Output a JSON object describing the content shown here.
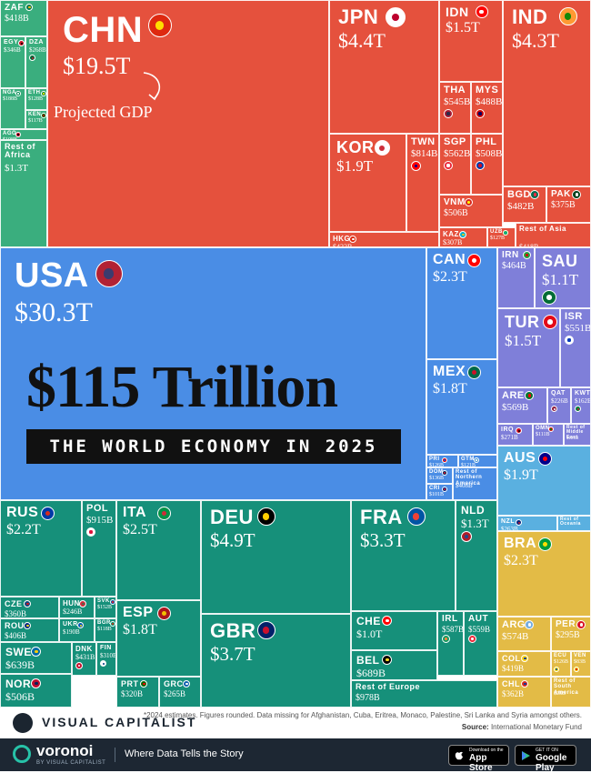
{
  "chart_data": {
    "type": "treemap",
    "headline": "$115 Trillion",
    "subtitle": "THE WORLD ECONOMY IN 2025",
    "annotation": "Projected GDP",
    "cells": [
      {
        "code": "ZAF",
        "value": "$418B",
        "region": "Africa",
        "flag": [
          "#007a4d",
          "#ffb612"
        ]
      },
      {
        "code": "EGY",
        "value": "$346B",
        "region": "Africa",
        "flag": [
          "#ce1126",
          "#000000"
        ]
      },
      {
        "code": "DZA",
        "value": "$268B",
        "region": "Africa",
        "flag": [
          "#006233",
          "#d21034"
        ]
      },
      {
        "code": "NGA",
        "value": "$188B",
        "region": "Africa",
        "flag": [
          "#008751",
          "#ffffff"
        ]
      },
      {
        "code": "ETH",
        "value": "$128B",
        "region": "Africa",
        "flag": [
          "#078930",
          "#fcdd09"
        ]
      },
      {
        "code": "KEN",
        "value": "$117B",
        "region": "Africa",
        "flag": [
          "#006600",
          "#bb0000"
        ]
      },
      {
        "code": "AGO",
        "value": "$108B",
        "region": "Africa",
        "flag": [
          "#cc092f",
          "#000000"
        ]
      },
      {
        "code": "Rest of Africa",
        "value": "$1.3T",
        "region": "Africa",
        "flag": []
      },
      {
        "code": "CHN",
        "value": "$19.5T",
        "region": "Asia",
        "flag": [
          "#de2910",
          "#ffde00"
        ]
      },
      {
        "code": "JPN",
        "value": "$4.4T",
        "region": "Asia",
        "flag": [
          "#ffffff",
          "#bc002d"
        ]
      },
      {
        "code": "IDN",
        "value": "$1.5T",
        "region": "Asia",
        "flag": [
          "#ff0000",
          "#ffffff"
        ]
      },
      {
        "code": "IND",
        "value": "$4.3T",
        "region": "Asia",
        "flag": [
          "#ff9933",
          "#138808"
        ]
      },
      {
        "code": "THA",
        "value": "$545B",
        "region": "Asia",
        "flag": [
          "#a51931",
          "#2d2a4a"
        ]
      },
      {
        "code": "MYS",
        "value": "$488B",
        "region": "Asia",
        "flag": [
          "#cc0001",
          "#010066"
        ]
      },
      {
        "code": "KOR",
        "value": "$1.9T",
        "region": "Asia",
        "flag": [
          "#ffffff",
          "#cd2e3a"
        ]
      },
      {
        "code": "TWN",
        "value": "$814B",
        "region": "Asia",
        "flag": [
          "#fe0000",
          "#000095"
        ]
      },
      {
        "code": "SGP",
        "value": "$562B",
        "region": "Asia",
        "flag": [
          "#ed2939",
          "#ffffff"
        ]
      },
      {
        "code": "PHL",
        "value": "$508B",
        "region": "Asia",
        "flag": [
          "#0038a8",
          "#ce1126"
        ]
      },
      {
        "code": "VNM",
        "value": "$506B",
        "region": "Asia",
        "flag": [
          "#da251d",
          "#ffff00"
        ]
      },
      {
        "code": "BGD",
        "value": "$482B",
        "region": "Asia",
        "flag": [
          "#006a4e",
          "#f42a41"
        ]
      },
      {
        "code": "PAK",
        "value": "$375B",
        "region": "Asia",
        "flag": [
          "#01411c",
          "#ffffff"
        ]
      },
      {
        "code": "HKG",
        "value": "$422B",
        "region": "Asia",
        "flag": [
          "#de2910",
          "#ffffff"
        ]
      },
      {
        "code": "KAZ",
        "value": "$307B",
        "region": "Asia",
        "flag": [
          "#00afca",
          "#fec50c"
        ]
      },
      {
        "code": "UZB",
        "value": "$127B",
        "region": "Asia",
        "flag": [
          "#1eb53a",
          "#0099b5"
        ]
      },
      {
        "code": "Rest of Asia",
        "value": "$418B",
        "region": "Asia",
        "flag": []
      },
      {
        "code": "USA",
        "value": "$30.3T",
        "region": "North America",
        "flag": [
          "#b22234",
          "#3c3b6e"
        ]
      },
      {
        "code": "CAN",
        "value": "$2.3T",
        "region": "North America",
        "flag": [
          "#ff0000",
          "#ffffff"
        ]
      },
      {
        "code": "MEX",
        "value": "$1.8T",
        "region": "North America",
        "flag": [
          "#006847",
          "#ce1126"
        ]
      },
      {
        "code": "PRI",
        "value": "$126B",
        "region": "North America",
        "flag": [
          "#ed0000",
          "#0050f0"
        ]
      },
      {
        "code": "GTM",
        "value": "$121B",
        "region": "North America",
        "flag": [
          "#4997d0",
          "#ffffff"
        ]
      },
      {
        "code": "DOM",
        "value": "$136B",
        "region": "North America",
        "flag": [
          "#002d62",
          "#ce1126"
        ]
      },
      {
        "code": "CRI",
        "value": "$101B",
        "region": "North America",
        "flag": [
          "#002b7f",
          "#ce1126"
        ]
      },
      {
        "code": "Rest of Northern America",
        "value": "$408B",
        "region": "North America",
        "flag": []
      },
      {
        "code": "IRN",
        "value": "$464B",
        "region": "Middle East",
        "flag": [
          "#239f40",
          "#da0000"
        ]
      },
      {
        "code": "SAU",
        "value": "$1.1T",
        "region": "Middle East",
        "flag": [
          "#006c35",
          "#ffffff"
        ]
      },
      {
        "code": "TUR",
        "value": "$1.5T",
        "region": "Middle East",
        "flag": [
          "#e30a17",
          "#ffffff"
        ]
      },
      {
        "code": "ISR",
        "value": "$551B",
        "region": "Middle East",
        "flag": [
          "#ffffff",
          "#0038b8"
        ]
      },
      {
        "code": "ARE",
        "value": "$569B",
        "region": "Middle East",
        "flag": [
          "#00732f",
          "#ff0000"
        ]
      },
      {
        "code": "QAT",
        "value": "$226B",
        "region": "Middle East",
        "flag": [
          "#8d1b3d",
          "#ffffff"
        ]
      },
      {
        "code": "KWT",
        "value": "$162B",
        "region": "Middle East",
        "flag": [
          "#007a3d",
          "#ce1126"
        ]
      },
      {
        "code": "IRQ",
        "value": "$271B",
        "region": "Middle East",
        "flag": [
          "#ce1126",
          "#000000"
        ]
      },
      {
        "code": "OMN",
        "value": "$111B",
        "region": "Middle East",
        "flag": [
          "#db161b",
          "#008000"
        ]
      },
      {
        "code": "Rest of Middle East",
        "value": "$121B",
        "region": "Middle East",
        "flag": []
      },
      {
        "code": "AUS",
        "value": "$1.9T",
        "region": "Oceania",
        "flag": [
          "#00008b",
          "#ff0000"
        ]
      },
      {
        "code": "NZL",
        "value": "$263B",
        "region": "Oceania",
        "flag": [
          "#00247d",
          "#cc142b"
        ]
      },
      {
        "code": "Rest of Oceania",
        "value": "",
        "region": "Oceania",
        "flag": []
      },
      {
        "code": "RUS",
        "value": "$2.2T",
        "region": "Europe",
        "flag": [
          "#0039a6",
          "#d52b1e"
        ]
      },
      {
        "code": "POL",
        "value": "$915B",
        "region": "Europe",
        "flag": [
          "#ffffff",
          "#dc143c"
        ]
      },
      {
        "code": "ITA",
        "value": "$2.5T",
        "region": "Europe",
        "flag": [
          "#009246",
          "#ce2b37"
        ]
      },
      {
        "code": "DEU",
        "value": "$4.9T",
        "region": "Europe",
        "flag": [
          "#000000",
          "#ffce00"
        ]
      },
      {
        "code": "FRA",
        "value": "$3.3T",
        "region": "Europe",
        "flag": [
          "#0055a4",
          "#ef4135"
        ]
      },
      {
        "code": "NLD",
        "value": "$1.3T",
        "region": "Europe",
        "flag": [
          "#ae1c28",
          "#21468b"
        ]
      },
      {
        "code": "CZE",
        "value": "$360B",
        "region": "Europe",
        "flag": [
          "#11457e",
          "#d7141a"
        ]
      },
      {
        "code": "HUN",
        "value": "$246B",
        "region": "Europe",
        "flag": [
          "#ce2939",
          "#477050"
        ]
      },
      {
        "code": "SVK",
        "value": "$152B",
        "region": "Europe",
        "flag": [
          "#0b4ea2",
          "#ee1c25"
        ]
      },
      {
        "code": "ROU",
        "value": "$406B",
        "region": "Europe",
        "flag": [
          "#002b7f",
          "#fcd116"
        ]
      },
      {
        "code": "UKR",
        "value": "$190B",
        "region": "Europe",
        "flag": [
          "#0057b7",
          "#ffd700"
        ]
      },
      {
        "code": "BGR",
        "value": "$118B",
        "region": "Europe",
        "flag": [
          "#00966e",
          "#d62612"
        ]
      },
      {
        "code": "ESP",
        "value": "$1.8T",
        "region": "Europe",
        "flag": [
          "#aa151b",
          "#f1bf00"
        ]
      },
      {
        "code": "GBR",
        "value": "$3.7T",
        "region": "Europe",
        "flag": [
          "#012169",
          "#c8102e"
        ]
      },
      {
        "code": "CHE",
        "value": "$1.0T",
        "region": "Europe",
        "flag": [
          "#ff0000",
          "#ffffff"
        ]
      },
      {
        "code": "IRL",
        "value": "$587B",
        "region": "Europe",
        "flag": [
          "#169b62",
          "#ff883e"
        ]
      },
      {
        "code": "AUT",
        "value": "$559B",
        "region": "Europe",
        "flag": [
          "#ed2939",
          "#ffffff"
        ]
      },
      {
        "code": "BEL",
        "value": "$689B",
        "region": "Europe",
        "flag": [
          "#000000",
          "#fdda24"
        ]
      },
      {
        "code": "SWE",
        "value": "$639B",
        "region": "Europe",
        "flag": [
          "#006aa7",
          "#fecc00"
        ]
      },
      {
        "code": "DNK",
        "value": "$431B",
        "region": "Europe",
        "flag": [
          "#c8102e",
          "#ffffff"
        ]
      },
      {
        "code": "FIN",
        "value": "$310B",
        "region": "Europe",
        "flag": [
          "#ffffff",
          "#003580"
        ]
      },
      {
        "code": "NOR",
        "value": "$506B",
        "region": "Europe",
        "flag": [
          "#ba0c2f",
          "#00205b"
        ]
      },
      {
        "code": "PRT",
        "value": "$320B",
        "region": "Europe",
        "flag": [
          "#006600",
          "#ff0000"
        ]
      },
      {
        "code": "GRC",
        "value": "$265B",
        "region": "Europe",
        "flag": [
          "#0d5eaf",
          "#ffffff"
        ]
      },
      {
        "code": "Rest of Europe",
        "value": "$978B",
        "region": "Europe",
        "flag": []
      },
      {
        "code": "BRA",
        "value": "$2.3T",
        "region": "South America",
        "flag": [
          "#009c3b",
          "#ffdf00"
        ]
      },
      {
        "code": "ARG",
        "value": "$574B",
        "region": "South America",
        "flag": [
          "#74acdf",
          "#ffffff"
        ]
      },
      {
        "code": "PER",
        "value": "$295B",
        "region": "South America",
        "flag": [
          "#d91023",
          "#ffffff"
        ]
      },
      {
        "code": "COL",
        "value": "$419B",
        "region": "South America",
        "flag": [
          "#fcd116",
          "#003893"
        ]
      },
      {
        "code": "ECU",
        "value": "$126B",
        "region": "South America",
        "flag": [
          "#ffdd00",
          "#034ea2"
        ]
      },
      {
        "code": "VEN",
        "value": "$83B",
        "region": "South America",
        "flag": [
          "#ffcc00",
          "#cf142b"
        ]
      },
      {
        "code": "CHL",
        "value": "$362B",
        "region": "South America",
        "flag": [
          "#d52b1e",
          "#0039a6"
        ]
      },
      {
        "code": "Rest of South America",
        "value": "$28B",
        "region": "South America",
        "flag": []
      }
    ],
    "region_colors": {
      "Africa": "#3aae7e",
      "Asia": "#e5513d",
      "North America": "#4a8de5",
      "Middle East": "#7f7fd9",
      "Oceania": "#5ab0e0",
      "Europe": "#16907a",
      "South America": "#e3bb46"
    }
  },
  "footer": {
    "brand": "VISUAL CAPITALIST",
    "note": "*2024 estimates. Figures rounded. Data missing for Afghanistan, Cuba, Eritrea, Monaco, Palestine, Sri Lanka and Syria amongst others.",
    "source_label": "Source:",
    "source": "International Monetary Fund",
    "app_name": "voronoi",
    "app_by": "BY VISUAL CAPITALIST",
    "tagline": "Where Data Tells the Story",
    "appstore_small": "Download on the",
    "appstore": "App Store",
    "play_small": "GET IT ON",
    "play": "Google Play"
  }
}
